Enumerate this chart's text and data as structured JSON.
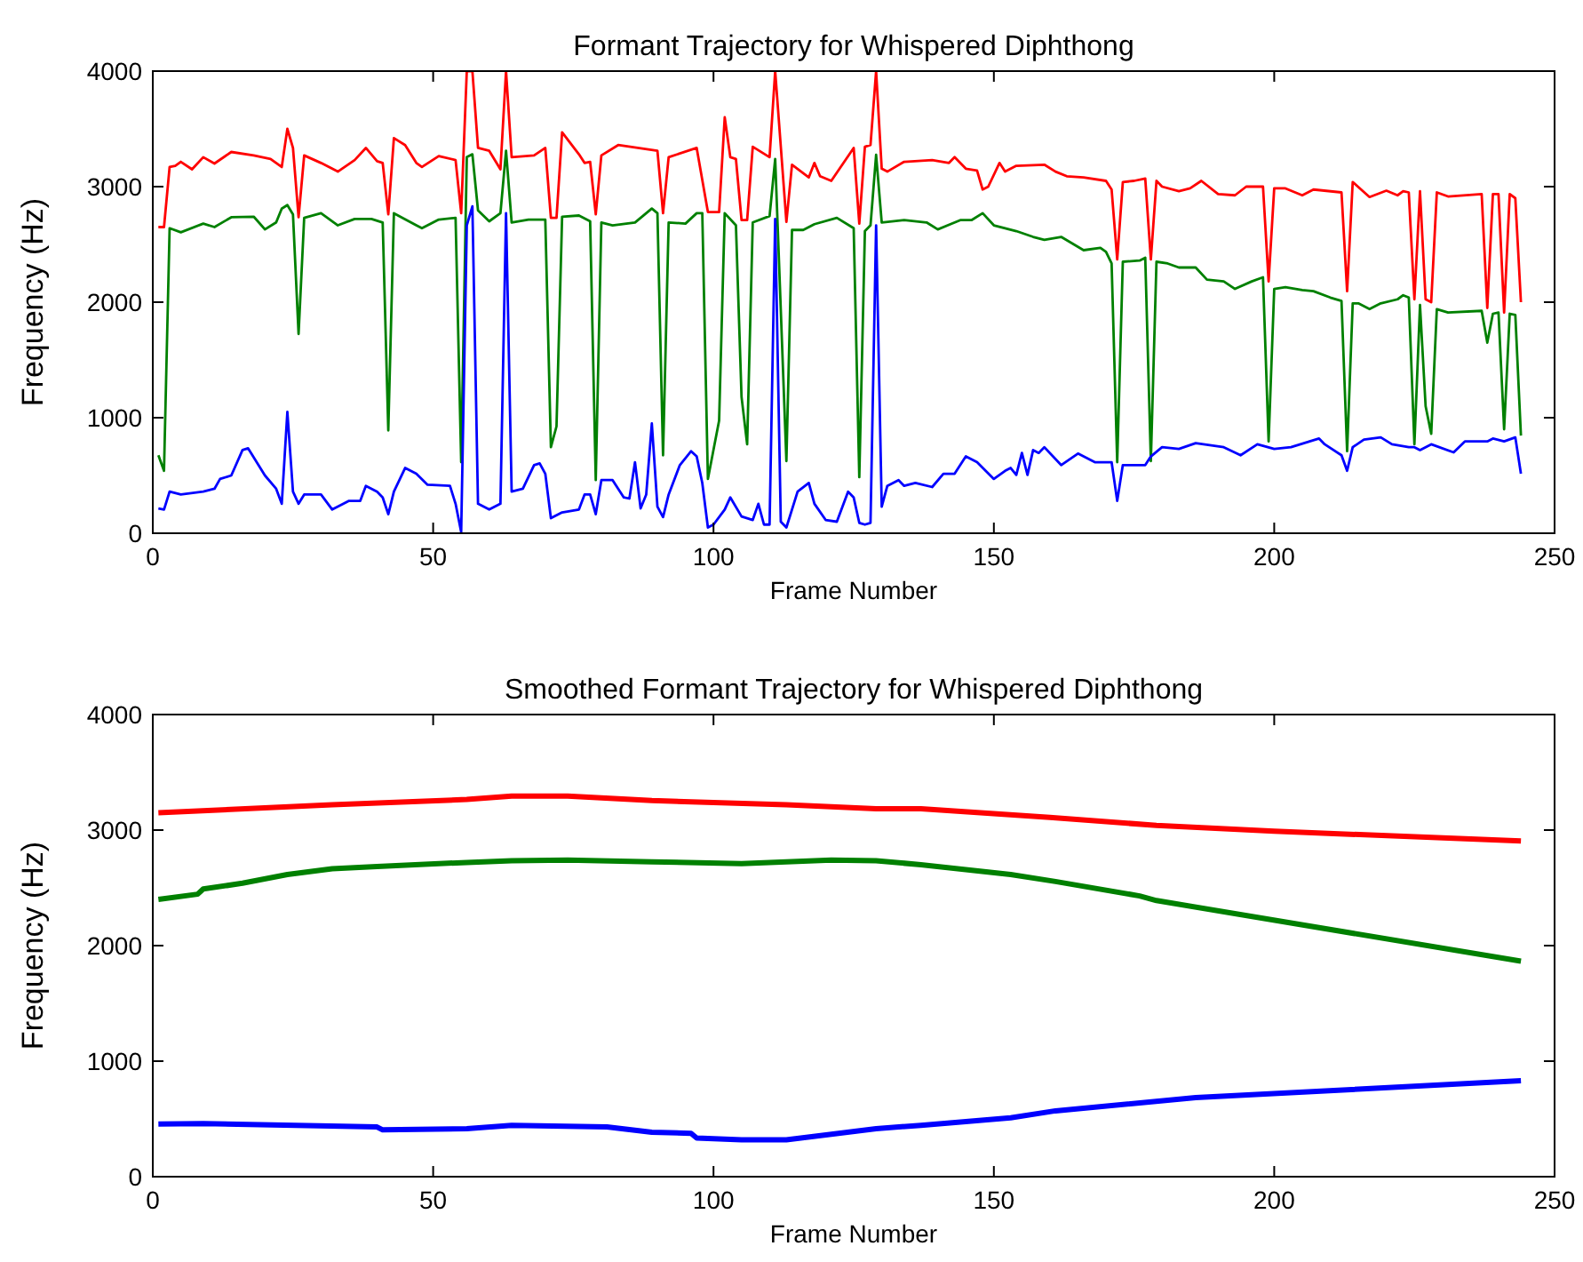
{
  "chart_data": [
    {
      "type": "line",
      "title": "Formant Trajectory for Whispered Diphthong",
      "xlabel": "Frame Number",
      "ylabel": "Frequency (Hz)",
      "xlim": [
        0,
        250
      ],
      "ylim": [
        0,
        4000
      ],
      "xticks": [
        0,
        50,
        100,
        150,
        200,
        250
      ],
      "yticks": [
        0,
        1000,
        2000,
        3000,
        4000
      ],
      "series": [
        {
          "color": "#ff0000",
          "x": [
            1,
            2,
            3,
            4,
            5,
            7,
            9,
            11,
            14,
            18,
            21,
            23,
            24,
            25,
            26,
            27,
            30,
            33,
            36,
            38,
            40,
            41,
            42,
            43,
            45,
            47,
            48,
            51,
            54,
            55,
            56,
            57,
            58,
            60,
            62,
            63,
            64,
            68,
            70,
            71,
            72,
            73,
            76,
            77,
            78,
            79,
            80,
            83,
            90,
            91,
            92,
            97,
            99,
            101,
            102,
            103,
            104,
            105,
            106,
            107,
            110,
            111,
            113,
            114,
            117,
            118,
            119,
            121,
            125,
            126,
            127,
            128,
            129,
            130,
            131,
            134,
            139,
            142,
            143,
            145,
            147,
            148,
            149,
            151,
            152,
            154,
            159,
            161,
            163,
            166,
            170,
            171,
            172,
            173,
            175,
            177,
            178,
            179,
            180,
            183,
            185,
            187,
            190,
            193,
            195,
            198,
            199,
            200,
            202,
            205,
            207,
            212,
            213,
            214,
            217,
            220,
            222,
            223,
            224,
            225,
            226,
            227,
            228,
            229,
            231,
            237,
            238,
            239,
            240,
            241,
            242,
            243,
            244
          ],
          "values": [
            2650,
            2650,
            3170,
            3180,
            3215,
            3150,
            3255,
            3200,
            3300,
            3270,
            3240,
            3170,
            3500,
            3335,
            2735,
            3270,
            3205,
            3130,
            3230,
            3335,
            3220,
            3205,
            2760,
            3420,
            3360,
            3205,
            3170,
            3265,
            3230,
            2770,
            4000,
            4000,
            3335,
            3310,
            3150,
            4000,
            3255,
            3270,
            3335,
            2730,
            2730,
            3470,
            3280,
            3205,
            3215,
            2760,
            3270,
            3360,
            3310,
            2770,
            3255,
            3335,
            2780,
            2780,
            3600,
            3255,
            3240,
            2710,
            2710,
            3345,
            3255,
            4000,
            2695,
            3190,
            3080,
            3205,
            3090,
            3050,
            3335,
            2680,
            3345,
            3360,
            4000,
            3155,
            3130,
            3215,
            3230,
            3205,
            3255,
            3155,
            3140,
            2975,
            3000,
            3205,
            3130,
            3180,
            3190,
            3130,
            3090,
            3080,
            3050,
            2975,
            2370,
            3040,
            3050,
            3070,
            2370,
            3050,
            3000,
            2960,
            2985,
            3050,
            2935,
            2925,
            3000,
            3000,
            2180,
            2985,
            2985,
            2925,
            2975,
            2950,
            2095,
            3040,
            2910,
            2965,
            2925,
            2960,
            2950,
            2025,
            2960,
            2025,
            2000,
            2950,
            2915,
            2935,
            1950,
            2935,
            2935,
            1910,
            2935,
            2900,
            2000
          ]
        },
        {
          "color": "#008000",
          "x": [
            1,
            2,
            3,
            5,
            9,
            11,
            14,
            18,
            20,
            22,
            23,
            24,
            25,
            26,
            27,
            30,
            33,
            36,
            39,
            41,
            42,
            43,
            47,
            48,
            51,
            54,
            55,
            56,
            57,
            58,
            60,
            62,
            63,
            64,
            67,
            70,
            71,
            72,
            73,
            76,
            78,
            79,
            80,
            82,
            86,
            89,
            90,
            91,
            92,
            95,
            97,
            98,
            99,
            101,
            102,
            104,
            105,
            106,
            107,
            110,
            111,
            113,
            114,
            116,
            118,
            122,
            125,
            126,
            127,
            128,
            129,
            130,
            134,
            138,
            140,
            144,
            146,
            148,
            150,
            154,
            157,
            159,
            162,
            166,
            169,
            170,
            171,
            172,
            173,
            176,
            177,
            178,
            179,
            181,
            183,
            186,
            188,
            191,
            193,
            196,
            198,
            199,
            200,
            202,
            205,
            207,
            210,
            212,
            213,
            214,
            215,
            217,
            219,
            222,
            223,
            224,
            225,
            226,
            227,
            228,
            229,
            231,
            237,
            238,
            239,
            240,
            241,
            242,
            243,
            244
          ],
          "values": [
            675,
            540,
            2640,
            2605,
            2680,
            2650,
            2735,
            2740,
            2630,
            2690,
            2810,
            2840,
            2760,
            1725,
            2730,
            2770,
            2665,
            2720,
            2720,
            2690,
            890,
            2770,
            2665,
            2640,
            2715,
            2730,
            615,
            3255,
            3280,
            2795,
            2700,
            2770,
            3310,
            2690,
            2715,
            2715,
            745,
            925,
            2740,
            2750,
            2700,
            460,
            2690,
            2665,
            2690,
            2810,
            2770,
            675,
            2690,
            2680,
            2770,
            2770,
            470,
            975,
            2770,
            2665,
            1180,
            770,
            2690,
            2745,
            3240,
            625,
            2625,
            2625,
            2675,
            2730,
            2640,
            485,
            2615,
            2665,
            3275,
            2690,
            2710,
            2690,
            2630,
            2710,
            2710,
            2770,
            2665,
            2615,
            2565,
            2540,
            2565,
            2450,
            2470,
            2435,
            2335,
            615,
            2350,
            2360,
            2385,
            625,
            2350,
            2335,
            2300,
            2300,
            2195,
            2180,
            2115,
            2180,
            2215,
            795,
            2115,
            2130,
            2105,
            2095,
            2040,
            2010,
            710,
            1990,
            1990,
            1940,
            1990,
            2025,
            2060,
            2040,
            770,
            1975,
            1100,
            860,
            1940,
            1910,
            1925,
            1650,
            1900,
            1910,
            900,
            1900,
            1890,
            845
          ]
        },
        {
          "color": "#0000ff",
          "x": [
            1,
            2,
            3,
            5,
            9,
            11,
            12,
            14,
            16,
            17,
            20,
            22,
            23,
            24,
            25,
            26,
            27,
            30,
            32,
            35,
            37,
            38,
            40,
            41,
            42,
            43,
            45,
            47,
            49,
            53,
            54,
            55,
            56,
            57,
            58,
            60,
            62,
            63,
            64,
            66,
            68,
            69,
            70,
            71,
            73,
            76,
            77,
            78,
            79,
            80,
            82,
            84,
            85,
            86,
            87,
            88,
            89,
            90,
            91,
            92,
            94,
            96,
            97,
            98,
            99,
            100,
            102,
            103,
            105,
            107,
            108,
            109,
            110,
            111,
            112,
            113,
            115,
            117,
            118,
            120,
            122,
            124,
            125,
            126,
            127,
            128,
            129,
            130,
            131,
            133,
            134,
            136,
            139,
            141,
            143,
            145,
            147,
            150,
            152,
            153,
            154,
            155,
            156,
            157,
            158,
            159,
            162,
            165,
            168,
            170,
            171,
            172,
            173,
            177,
            178,
            180,
            183,
            186,
            191,
            194,
            197,
            200,
            203,
            208,
            209,
            212,
            213,
            214,
            216,
            219,
            221,
            224,
            225,
            226,
            228,
            232,
            234,
            238,
            239,
            241,
            243,
            244
          ],
          "values": [
            215,
            205,
            360,
            335,
            360,
            385,
            470,
            500,
            720,
            735,
            500,
            385,
            255,
            1050,
            360,
            255,
            335,
            335,
            205,
            280,
            280,
            410,
            360,
            310,
            165,
            360,
            565,
            515,
            420,
            410,
            255,
            10,
            2665,
            2830,
            255,
            205,
            255,
            2770,
            360,
            385,
            590,
            605,
            515,
            130,
            180,
            205,
            335,
            335,
            165,
            460,
            460,
            310,
            300,
            615,
            215,
            335,
            950,
            230,
            140,
            335,
            590,
            710,
            665,
            435,
            50,
            75,
            205,
            310,
            145,
            115,
            255,
            75,
            75,
            2720,
            100,
            50,
            360,
            435,
            255,
            115,
            100,
            360,
            310,
            90,
            75,
            90,
            2665,
            230,
            410,
            460,
            410,
            435,
            400,
            515,
            515,
            665,
            615,
            470,
            540,
            565,
            505,
            695,
            505,
            720,
            695,
            745,
            590,
            690,
            615,
            615,
            615,
            280,
            590,
            590,
            665,
            745,
            730,
            780,
            745,
            675,
            770,
            730,
            745,
            820,
            770,
            675,
            540,
            745,
            810,
            830,
            770,
            745,
            745,
            720,
            770,
            700,
            795,
            795,
            820,
            795,
            830,
            515
          ]
        }
      ]
    },
    {
      "type": "line",
      "title": "Smoothed Formant Trajectory for Whispered Diphthong",
      "xlabel": "Frame Number",
      "ylabel": "Frequency (Hz)",
      "xlim": [
        0,
        250
      ],
      "ylim": [
        0,
        4000
      ],
      "xticks": [
        0,
        50,
        100,
        150,
        200,
        250
      ],
      "yticks": [
        0,
        1000,
        2000,
        3000,
        4000
      ],
      "series": [
        {
          "color": "#ff0000",
          "x": [
            1,
            32,
            56,
            64,
            74,
            89,
            113,
            129,
            137,
            160,
            179,
            200,
            244
          ],
          "values": [
            3150,
            3220,
            3265,
            3295,
            3295,
            3255,
            3220,
            3185,
            3185,
            3110,
            3040,
            2990,
            2905
          ]
        },
        {
          "color": "#008000",
          "x": [
            1,
            8,
            9,
            16,
            24,
            32,
            40,
            56,
            64,
            74,
            89,
            105,
            121,
            129,
            137,
            153,
            161,
            176,
            179,
            244
          ],
          "values": [
            2400,
            2445,
            2490,
            2540,
            2615,
            2665,
            2685,
            2720,
            2735,
            2740,
            2725,
            2710,
            2740,
            2735,
            2700,
            2615,
            2555,
            2430,
            2390,
            1865
          ]
        },
        {
          "color": "#0000ff",
          "x": [
            1,
            9,
            40,
            41,
            56,
            64,
            81,
            89,
            96,
            97,
            105,
            113,
            129,
            137,
            153,
            161,
            186,
            244
          ],
          "values": [
            455,
            460,
            430,
            405,
            415,
            445,
            430,
            385,
            375,
            335,
            320,
            320,
            415,
            445,
            510,
            570,
            685,
            830
          ]
        }
      ]
    }
  ]
}
